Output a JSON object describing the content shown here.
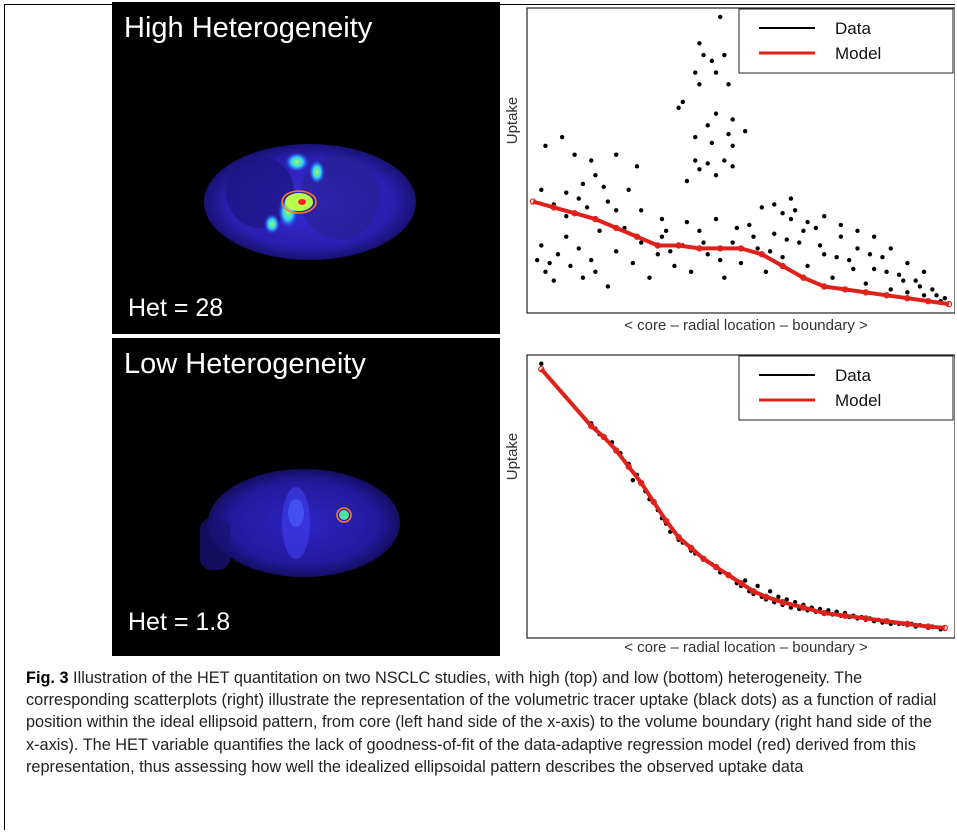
{
  "figure": {
    "panels": [
      {
        "title": "High Heterogeneity",
        "het_label": "Het = 28"
      },
      {
        "title": "Low Heterogeneity",
        "het_label": "Het = 1.8"
      }
    ],
    "caption_label": "Fig. 3",
    "caption_text": " Illustration of the HET quantitation on two NSCLC studies, with high (top) and low (bottom) heterogeneity. The corresponding scatterplots (right) illustrate the representation of the volumetric tracer uptake (black dots) as a function of radial position within the ideal ellipsoid pattern, from core (left hand side of the x-axis) to the volume boundary (right hand side of the x-axis). The HET variable quantifies the lack of goodness-of-fit of the data-adaptive regression model (red) derived from this representation, thus assessing how well the idealized ellipsoidal pattern describes the observed uptake data"
  },
  "colors": {
    "data": "#000000",
    "model": "#e0201a"
  },
  "chart_data": [
    {
      "type": "scatter",
      "title": "",
      "xlabel": "< core – radial location – boundary >",
      "ylabel": "Uptake",
      "xlim": [
        0,
        1
      ],
      "ylim": [
        0,
        1
      ],
      "legend": {
        "position": "top-right",
        "entries": [
          "Data",
          "Model"
        ]
      },
      "series": [
        {
          "name": "Data",
          "points": [
            [
              0.45,
              0.99
            ],
            [
              0.4,
              0.9
            ],
            [
              0.41,
              0.86
            ],
            [
              0.46,
              0.86
            ],
            [
              0.43,
              0.84
            ],
            [
              0.39,
              0.8
            ],
            [
              0.44,
              0.8
            ],
            [
              0.4,
              0.76
            ],
            [
              0.47,
              0.76
            ],
            [
              0.36,
              0.7
            ],
            [
              0.35,
              0.68
            ],
            [
              0.44,
              0.66
            ],
            [
              0.48,
              0.64
            ],
            [
              0.42,
              0.62
            ],
            [
              0.51,
              0.6
            ],
            [
              0.47,
              0.59
            ],
            [
              0.39,
              0.58
            ],
            [
              0.43,
              0.56
            ],
            [
              0.48,
              0.55
            ],
            [
              0.39,
              0.5
            ],
            [
              0.46,
              0.5
            ],
            [
              0.42,
              0.49
            ],
            [
              0.48,
              0.48
            ],
            [
              0.4,
              0.47
            ],
            [
              0.44,
              0.45
            ],
            [
              0.37,
              0.43
            ],
            [
              0.07,
              0.58
            ],
            [
              0.03,
              0.55
            ],
            [
              0.1,
              0.52
            ],
            [
              0.2,
              0.52
            ],
            [
              0.14,
              0.5
            ],
            [
              0.25,
              0.48
            ],
            [
              0.15,
              0.45
            ],
            [
              0.12,
              0.42
            ],
            [
              0.17,
              0.41
            ],
            [
              0.23,
              0.4
            ],
            [
              0.02,
              0.4
            ],
            [
              0.08,
              0.39
            ],
            [
              0.11,
              0.37
            ],
            [
              0.18,
              0.36
            ],
            [
              0.05,
              0.35
            ],
            [
              0.13,
              0.34
            ],
            [
              0.2,
              0.33
            ],
            [
              0.26,
              0.33
            ],
            [
              0.08,
              0.31
            ],
            [
              0.31,
              0.3
            ],
            [
              0.01,
              0.16
            ],
            [
              0.04,
              0.15
            ],
            [
              0.06,
              0.18
            ],
            [
              0.03,
              0.12
            ],
            [
              0.09,
              0.14
            ],
            [
              0.12,
              0.1
            ],
            [
              0.14,
              0.16
            ],
            [
              0.05,
              0.09
            ],
            [
              0.15,
              0.12
            ],
            [
              0.18,
              0.07
            ],
            [
              0.11,
              0.2
            ],
            [
              0.02,
              0.21
            ],
            [
              0.08,
              0.24
            ],
            [
              0.16,
              0.26
            ],
            [
              0.2,
              0.19
            ],
            [
              0.22,
              0.27
            ],
            [
              0.24,
              0.15
            ],
            [
              0.26,
              0.22
            ],
            [
              0.28,
              0.1
            ],
            [
              0.3,
              0.18
            ],
            [
              0.32,
              0.26
            ],
            [
              0.34,
              0.14
            ],
            [
              0.36,
              0.21
            ],
            [
              0.38,
              0.12
            ],
            [
              0.4,
              0.26
            ],
            [
              0.42,
              0.18
            ],
            [
              0.44,
              0.3
            ],
            [
              0.46,
              0.1
            ],
            [
              0.48,
              0.22
            ],
            [
              0.5,
              0.15
            ],
            [
              0.52,
              0.28
            ],
            [
              0.54,
              0.2
            ],
            [
              0.56,
              0.12
            ],
            [
              0.58,
              0.25
            ],
            [
              0.6,
              0.17
            ],
            [
              0.62,
              0.3
            ],
            [
              0.64,
              0.22
            ],
            [
              0.66,
              0.14
            ],
            [
              0.68,
              0.27
            ],
            [
              0.7,
              0.18
            ],
            [
              0.72,
              0.1
            ],
            [
              0.74,
              0.24
            ],
            [
              0.76,
              0.16
            ],
            [
              0.78,
              0.2
            ],
            [
              0.8,
              0.08
            ],
            [
              0.82,
              0.13
            ],
            [
              0.84,
              0.17
            ],
            [
              0.86,
              0.06
            ],
            [
              0.88,
              0.11
            ],
            [
              0.9,
              0.05
            ],
            [
              0.92,
              0.09
            ],
            [
              0.94,
              0.04
            ],
            [
              0.96,
              0.06
            ],
            [
              0.98,
              0.02
            ],
            [
              0.99,
              0.03
            ],
            [
              0.31,
              0.24
            ],
            [
              0.33,
              0.19
            ],
            [
              0.37,
              0.29
            ],
            [
              0.41,
              0.22
            ],
            [
              0.45,
              0.16
            ],
            [
              0.49,
              0.27
            ],
            [
              0.53,
              0.24
            ],
            [
              0.57,
              0.19
            ],
            [
              0.61,
              0.23
            ],
            [
              0.65,
              0.26
            ],
            [
              0.69,
              0.21
            ],
            [
              0.73,
              0.17
            ],
            [
              0.77,
              0.13
            ],
            [
              0.81,
              0.18
            ],
            [
              0.85,
              0.12
            ],
            [
              0.89,
              0.09
            ],
            [
              0.93,
              0.07
            ],
            [
              0.97,
              0.04
            ],
            [
              0.6,
              0.32
            ],
            [
              0.63,
              0.33
            ],
            [
              0.66,
              0.29
            ],
            [
              0.7,
              0.31
            ],
            [
              0.74,
              0.28
            ],
            [
              0.78,
              0.26
            ],
            [
              0.82,
              0.24
            ],
            [
              0.86,
              0.2
            ],
            [
              0.9,
              0.15
            ],
            [
              0.94,
              0.12
            ],
            [
              0.58,
              0.35
            ],
            [
              0.62,
              0.37
            ],
            [
              0.55,
              0.34
            ]
          ]
        },
        {
          "name": "Model",
          "points": [
            [
              0.0,
              0.36
            ],
            [
              0.05,
              0.34
            ],
            [
              0.1,
              0.32
            ],
            [
              0.15,
              0.3
            ],
            [
              0.2,
              0.27
            ],
            [
              0.25,
              0.24
            ],
            [
              0.3,
              0.21
            ],
            [
              0.35,
              0.21
            ],
            [
              0.4,
              0.2
            ],
            [
              0.45,
              0.2
            ],
            [
              0.5,
              0.2
            ],
            [
              0.55,
              0.18
            ],
            [
              0.6,
              0.14
            ],
            [
              0.65,
              0.1
            ],
            [
              0.7,
              0.07
            ],
            [
              0.75,
              0.06
            ],
            [
              0.8,
              0.05
            ],
            [
              0.85,
              0.04
            ],
            [
              0.9,
              0.03
            ],
            [
              0.95,
              0.02
            ],
            [
              1.0,
              0.01
            ]
          ]
        }
      ]
    },
    {
      "type": "scatter",
      "title": "",
      "xlabel": "< core – radial location – boundary >",
      "ylabel": "Uptake",
      "xlim": [
        0,
        1
      ],
      "ylim": [
        0,
        1
      ],
      "legend": {
        "position": "top-right",
        "entries": [
          "Data",
          "Model"
        ]
      },
      "series": [
        {
          "name": "Data",
          "points": [
            [
              0.02,
              0.99
            ],
            [
              0.14,
              0.77
            ],
            [
              0.15,
              0.75
            ],
            [
              0.16,
              0.73
            ],
            [
              0.19,
              0.7
            ],
            [
              0.21,
              0.66
            ],
            [
              0.23,
              0.62
            ],
            [
              0.25,
              0.58
            ],
            [
              0.24,
              0.56
            ],
            [
              0.27,
              0.52
            ],
            [
              0.28,
              0.49
            ],
            [
              0.3,
              0.45
            ],
            [
              0.31,
              0.42
            ],
            [
              0.32,
              0.4
            ],
            [
              0.33,
              0.37
            ],
            [
              0.35,
              0.34
            ],
            [
              0.36,
              0.33
            ],
            [
              0.38,
              0.3
            ],
            [
              0.39,
              0.29
            ],
            [
              0.41,
              0.27
            ],
            [
              0.42,
              0.26
            ],
            [
              0.43,
              0.25
            ],
            [
              0.44,
              0.24
            ],
            [
              0.45,
              0.22
            ],
            [
              0.47,
              0.21
            ],
            [
              0.48,
              0.2
            ],
            [
              0.49,
              0.18
            ],
            [
              0.5,
              0.17
            ],
            [
              0.52,
              0.15
            ],
            [
              0.53,
              0.14
            ],
            [
              0.55,
              0.13
            ],
            [
              0.56,
              0.12
            ],
            [
              0.58,
              0.11
            ],
            [
              0.6,
              0.1
            ],
            [
              0.62,
              0.09
            ],
            [
              0.64,
              0.085
            ],
            [
              0.66,
              0.08
            ],
            [
              0.68,
              0.075
            ],
            [
              0.7,
              0.07
            ],
            [
              0.72,
              0.065
            ],
            [
              0.74,
              0.06
            ],
            [
              0.76,
              0.055
            ],
            [
              0.78,
              0.05
            ],
            [
              0.8,
              0.045
            ],
            [
              0.82,
              0.04
            ],
            [
              0.84,
              0.035
            ],
            [
              0.86,
              0.03
            ],
            [
              0.88,
              0.03
            ],
            [
              0.9,
              0.025
            ],
            [
              0.92,
              0.02
            ],
            [
              0.95,
              0.015
            ],
            [
              0.98,
              0.01
            ],
            [
              0.51,
              0.19
            ],
            [
              0.54,
              0.17
            ],
            [
              0.57,
              0.15
            ],
            [
              0.59,
              0.13
            ],
            [
              0.61,
              0.12
            ],
            [
              0.63,
              0.11
            ],
            [
              0.65,
              0.1
            ],
            [
              0.67,
              0.09
            ],
            [
              0.69,
              0.085
            ],
            [
              0.71,
              0.08
            ],
            [
              0.73,
              0.075
            ],
            [
              0.75,
              0.07
            ],
            [
              0.77,
              0.06
            ],
            [
              0.79,
              0.055
            ],
            [
              0.81,
              0.05
            ],
            [
              0.83,
              0.045
            ],
            [
              0.85,
              0.04
            ],
            [
              0.87,
              0.035
            ],
            [
              0.89,
              0.03
            ],
            [
              0.91,
              0.03
            ],
            [
              0.93,
              0.025
            ],
            [
              0.96,
              0.02
            ]
          ]
        },
        {
          "name": "Model",
          "points": [
            [
              0.02,
              0.97
            ],
            [
              0.14,
              0.76
            ],
            [
              0.17,
              0.72
            ],
            [
              0.2,
              0.67
            ],
            [
              0.23,
              0.61
            ],
            [
              0.26,
              0.55
            ],
            [
              0.29,
              0.48
            ],
            [
              0.32,
              0.41
            ],
            [
              0.35,
              0.35
            ],
            [
              0.38,
              0.31
            ],
            [
              0.41,
              0.27
            ],
            [
              0.44,
              0.24
            ],
            [
              0.47,
              0.21
            ],
            [
              0.5,
              0.18
            ],
            [
              0.53,
              0.15
            ],
            [
              0.56,
              0.13
            ],
            [
              0.6,
              0.11
            ],
            [
              0.65,
              0.09
            ],
            [
              0.7,
              0.07
            ],
            [
              0.75,
              0.06
            ],
            [
              0.8,
              0.05
            ],
            [
              0.85,
              0.04
            ],
            [
              0.9,
              0.03
            ],
            [
              0.95,
              0.02
            ],
            [
              0.99,
              0.015
            ]
          ]
        }
      ]
    }
  ]
}
